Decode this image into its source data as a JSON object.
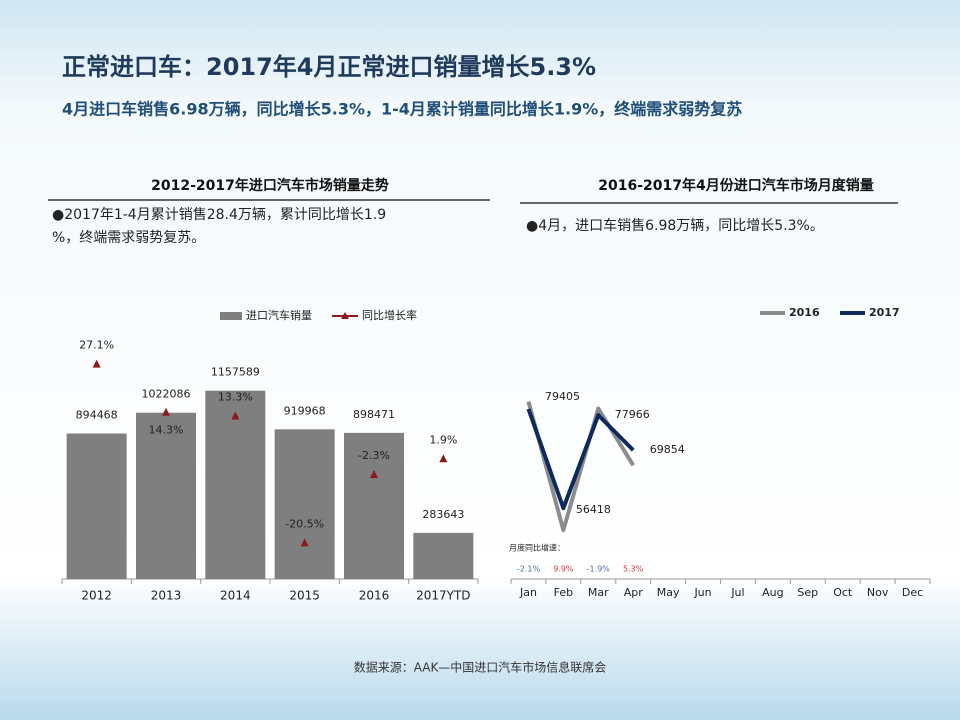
{
  "header": {
    "title": "正常进口车：2017年4月正常进口销量增长5.3%",
    "subtitle": "4月进口车销售6.98万辆，同比增长5.3%，1-4月累计销量同比增长1.9%，终端需求弱势复苏"
  },
  "source": "数据来源：AAK—中国进口汽车市场信息联席会",
  "chart_data": [
    {
      "type": "bar",
      "title": "2012-2017年进口汽车市场销量走势",
      "note": "●2017年1-4月累计销售28.4万辆，累计同比增长1.9%，终端需求弱势复苏。",
      "categories": [
        "2012",
        "2013",
        "2014",
        "2015",
        "2016",
        "2017YTD"
      ],
      "series": [
        {
          "name": "进口汽车销量",
          "color": "#7f7f7f",
          "values": [
            894468,
            1022086,
            1157589,
            919968,
            898471,
            283643
          ]
        },
        {
          "name": "同比增长率",
          "color": "#8b1a1a",
          "axis": "y2",
          "values": [
            27.1,
            14.3,
            13.3,
            -20.5,
            -2.3,
            1.9
          ],
          "value_labels": [
            "27.1%",
            "14.3%",
            "13.3%",
            "-20.5%",
            "-2.3%",
            "1.9%"
          ]
        }
      ],
      "ylim": [
        0,
        1500000
      ],
      "y2lim": [
        -30,
        35
      ],
      "legend": "top"
    },
    {
      "type": "line",
      "title": "2016-2017年4月份进口汽车市场月度销量",
      "note": "●4月，进口车销售6.98万辆，同比增长5.3%。",
      "categories": [
        "Jan",
        "Feb",
        "Mar",
        "Apr",
        "May",
        "Jun",
        "Jul",
        "Aug",
        "Sep",
        "Oct",
        "Nov",
        "Dec"
      ],
      "series": [
        {
          "name": "2016",
          "color": "#8c8c8c",
          "values": [
            81110,
            51336,
            79476,
            66338,
            null,
            null,
            null,
            null,
            null,
            null,
            null,
            null
          ]
        },
        {
          "name": "2017",
          "color": "#0d2a5c",
          "values": [
            79405,
            56418,
            77966,
            69854,
            null,
            null,
            null,
            null,
            null,
            null,
            null,
            null
          ],
          "labeled": true
        }
      ],
      "growth": {
        "label": "月度同比增速：",
        "values": [
          -2.1,
          9.9,
          -1.9,
          5.3
        ],
        "value_labels": [
          "-2.1%",
          "9.9%",
          "-1.9%",
          "5.3%"
        ]
      },
      "ylim": [
        40000,
        100000
      ],
      "legend": "top-right"
    }
  ]
}
